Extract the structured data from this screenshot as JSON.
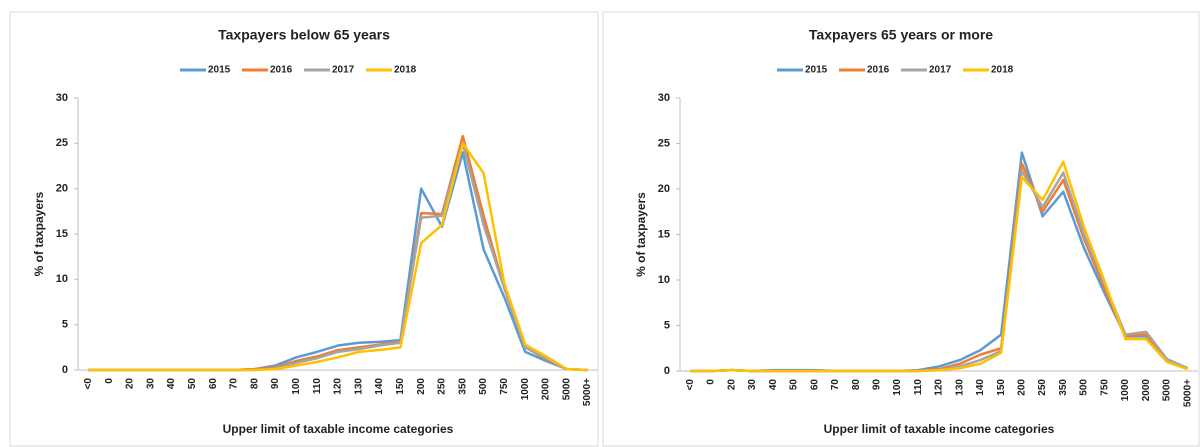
{
  "chart_data": [
    {
      "type": "line",
      "title": "Taxpayers below 65 years",
      "y_label": "% of taxpayers",
      "x_label": "Upper limit of taxable income categories",
      "categories": [
        "<0",
        "0",
        "20",
        "30",
        "40",
        "50",
        "60",
        "70",
        "80",
        "90",
        "100",
        "110",
        "120",
        "130",
        "140",
        "150",
        "200",
        "250",
        "350",
        "500",
        "750",
        "1000",
        "2000",
        "5000",
        "5000+"
      ],
      "ylim": [
        0,
        30
      ],
      "yticks": [
        0,
        5,
        10,
        15,
        20,
        25,
        30
      ],
      "series": [
        {
          "name": "2015",
          "color": "#5b9bd5",
          "values": [
            0,
            0,
            0,
            0,
            0,
            0,
            0,
            0,
            0.1,
            0.5,
            1.4,
            2.0,
            2.7,
            3.0,
            3.1,
            3.3,
            20,
            15.8,
            24,
            13.3,
            8,
            2,
            1,
            0.1,
            0
          ]
        },
        {
          "name": "2016",
          "color": "#ed7d31",
          "values": [
            0,
            0,
            0,
            0,
            0,
            0,
            0,
            0,
            0.1,
            0.3,
            1.0,
            1.5,
            2.2,
            2.5,
            2.8,
            3.1,
            17.3,
            17.2,
            25.8,
            17,
            9,
            2.5,
            1.2,
            0.1,
            0
          ]
        },
        {
          "name": "2017",
          "color": "#a5a5a5",
          "values": [
            0,
            0,
            0,
            0,
            0,
            0,
            0,
            0,
            0,
            0.2,
            0.8,
            1.3,
            2.0,
            2.3,
            2.7,
            3.0,
            16.8,
            17,
            25,
            16,
            9,
            2.5,
            1.3,
            0.1,
            0
          ]
        },
        {
          "name": "2018",
          "color": "#ffc000",
          "values": [
            0,
            0,
            0,
            0,
            0,
            0,
            0,
            0,
            0,
            0.1,
            0.5,
            0.9,
            1.4,
            2.0,
            2.2,
            2.5,
            14,
            16,
            25,
            21.7,
            9.5,
            2.8,
            1.5,
            0.1,
            0
          ]
        }
      ]
    },
    {
      "type": "line",
      "title": "Taxpayers 65 years or more",
      "y_label": "% of taxpayers",
      "x_label": "Upper limit of taxable income categories",
      "categories": [
        "<0",
        "0",
        "20",
        "30",
        "40",
        "50",
        "60",
        "70",
        "80",
        "90",
        "100",
        "110",
        "120",
        "130",
        "140",
        "150",
        "200",
        "250",
        "350",
        "500",
        "750",
        "1000",
        "2000",
        "5000",
        "5000+"
      ],
      "ylim": [
        0,
        30
      ],
      "yticks": [
        0,
        5,
        10,
        15,
        20,
        25,
        30
      ],
      "series": [
        {
          "name": "2015",
          "color": "#5b9bd5",
          "values": [
            0,
            0,
            0.1,
            0,
            0.1,
            0.1,
            0.1,
            0,
            0,
            0,
            0,
            0.1,
            0.5,
            1.2,
            2.3,
            4,
            24,
            17,
            19.7,
            13.5,
            8.5,
            3.8,
            3.8,
            1.3,
            0.3
          ]
        },
        {
          "name": "2016",
          "color": "#ed7d31",
          "values": [
            0,
            0,
            0.1,
            0,
            0,
            0,
            0,
            0,
            0,
            0,
            0,
            0,
            0.2,
            0.8,
            1.8,
            2.5,
            22.8,
            17.5,
            21,
            14.5,
            9,
            3.8,
            4,
            1.2,
            0.3
          ]
        },
        {
          "name": "2017",
          "color": "#a5a5a5",
          "values": [
            0,
            0,
            0.1,
            0,
            0,
            0,
            0,
            0,
            0,
            0,
            0,
            0,
            0.1,
            0.5,
            1.2,
            2.2,
            22,
            18,
            21.8,
            15,
            9.5,
            4,
            4.3,
            1.3,
            0.3
          ]
        },
        {
          "name": "2018",
          "color": "#ffc000",
          "values": [
            0,
            0,
            0.1,
            0,
            0,
            0,
            0,
            0,
            0,
            0,
            0,
            0,
            0.1,
            0.3,
            0.8,
            2,
            21.3,
            18.8,
            23,
            15.8,
            9.8,
            3.5,
            3.5,
            1,
            0.2
          ]
        }
      ]
    }
  ]
}
